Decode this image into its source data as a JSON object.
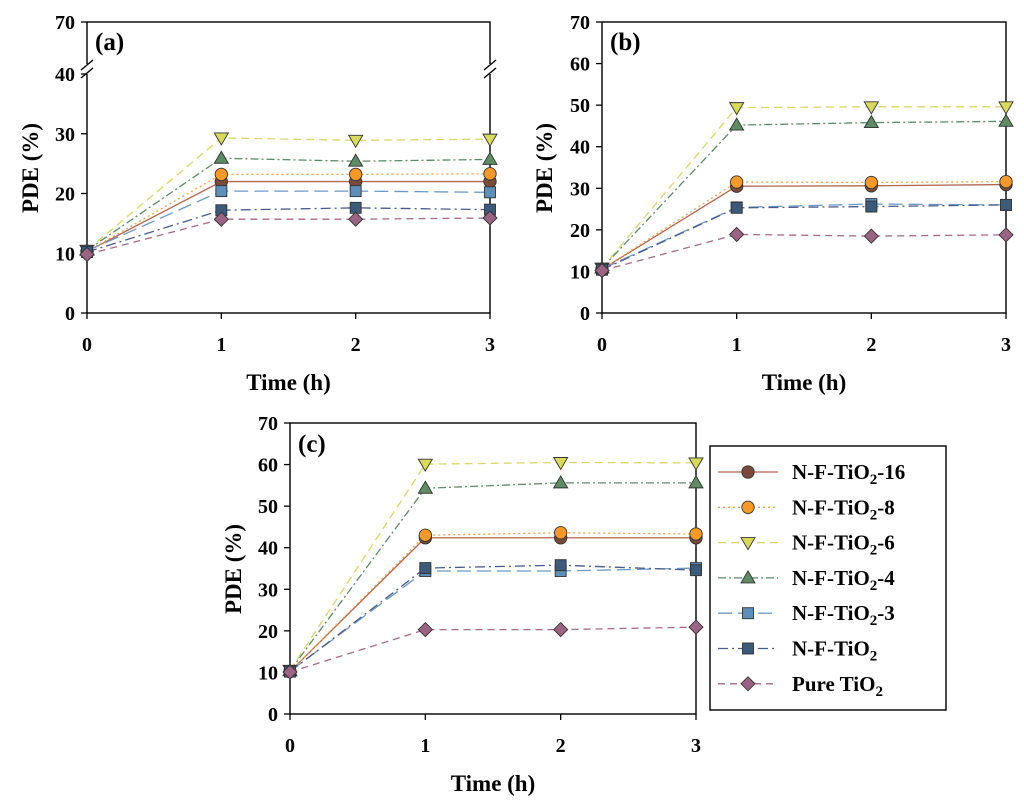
{
  "figure": {
    "legend": {
      "entries": [
        {
          "label": "N-F-TiO2-16",
          "html": "N-F-TiO<tspan font-size=\"15\" dy=\"5\">2</tspan><tspan dy=\"-5\">-16</tspan>",
          "series_ref": 0
        },
        {
          "label": "N-F-TiO2-8",
          "html": "N-F-TiO<tspan font-size=\"15\" dy=\"5\">2</tspan><tspan dy=\"-5\">-8</tspan>",
          "series_ref": 1
        },
        {
          "label": "N-F-TiO2-6",
          "html": "N-F-TiO<tspan font-size=\"15\" dy=\"5\">2</tspan><tspan dy=\"-5\">-6</tspan>",
          "series_ref": 2
        },
        {
          "label": "N-F-TiO2-4",
          "html": "N-F-TiO<tspan font-size=\"15\" dy=\"5\">2</tspan><tspan dy=\"-5\">-4</tspan>",
          "series_ref": 3
        },
        {
          "label": "N-F-TiO2-3",
          "html": "N-F-TiO<tspan font-size=\"15\" dy=\"5\">2</tspan><tspan dy=\"-5\">-3</tspan>",
          "series_ref": 4
        },
        {
          "label": "N-F-TiO2",
          "html": "N-F-TiO<tspan font-size=\"15\" dy=\"5\">2</tspan>",
          "series_ref": 5
        },
        {
          "label": "Pure TiO2",
          "html": "Pure TiO<tspan font-size=\"15\" dy=\"5\">2</tspan>",
          "series_ref": 6
        }
      ]
    },
    "series_styles": [
      {
        "name": "N-F-TiO2-16",
        "color": "#b5654f",
        "marker": "circle",
        "marker_fill": "#7a4a3a",
        "dash": ""
      },
      {
        "name": "N-F-TiO2-8",
        "color": "#f2a24a",
        "marker": "circle",
        "marker_fill": "#f59a2a",
        "dash": "2,3"
      },
      {
        "name": "N-F-TiO2-6",
        "color": "#d8d86a",
        "marker": "triangle-down",
        "marker_fill": "#d9d95c",
        "dash": "8,5"
      },
      {
        "name": "N-F-TiO2-4",
        "color": "#5c8a6a",
        "marker": "triangle-up",
        "marker_fill": "#5e8c64",
        "dash": "8,3,2,3"
      },
      {
        "name": "N-F-TiO2-3",
        "color": "#6c9ac4",
        "marker": "square",
        "marker_fill": "#5d8fb8",
        "dash": "14,6"
      },
      {
        "name": "N-F-TiO2",
        "color": "#4a5a8c",
        "marker": "square",
        "marker_fill": "#3c5a7a",
        "dash": "10,4,2,4"
      },
      {
        "name": "Pure TiO2",
        "color": "#a86a88",
        "marker": "diamond",
        "marker_fill": "#9c6484",
        "dash": "7,5"
      }
    ]
  },
  "chart_data": [
    {
      "type": "line",
      "panel": "(a)",
      "xlabel": "Time (h)",
      "ylabel": "PDE (%)",
      "x": [
        0,
        1,
        2,
        3
      ],
      "xlim": [
        0,
        3
      ],
      "xticks": [
        0,
        1,
        2,
        3
      ],
      "ylim": [
        0,
        70
      ],
      "axis_break": {
        "from": 35,
        "to": 60
      },
      "yticks": [
        0,
        10,
        20,
        30,
        40,
        70
      ],
      "series": [
        {
          "name": "N-F-TiO2-16",
          "values": [
            10.3,
            22.0,
            22.0,
            22.0
          ]
        },
        {
          "name": "N-F-TiO2-8",
          "values": [
            10.3,
            23.2,
            23.2,
            23.3
          ]
        },
        {
          "name": "N-F-TiO2-6",
          "values": [
            10.5,
            29.3,
            28.9,
            29.1
          ]
        },
        {
          "name": "N-F-TiO2-4",
          "values": [
            10.5,
            25.9,
            25.4,
            25.7
          ]
        },
        {
          "name": "N-F-TiO2-3",
          "values": [
            10.4,
            20.4,
            20.4,
            20.2
          ]
        },
        {
          "name": "N-F-TiO2",
          "values": [
            10.2,
            17.2,
            17.6,
            17.3
          ]
        },
        {
          "name": "Pure TiO2",
          "values": [
            9.8,
            15.7,
            15.7,
            15.9
          ]
        }
      ]
    },
    {
      "type": "line",
      "panel": "(b)",
      "xlabel": "Time (h)",
      "ylabel": "PDE (%)",
      "x": [
        0,
        1,
        2,
        3
      ],
      "xlim": [
        0,
        3
      ],
      "xticks": [
        0,
        1,
        2,
        3
      ],
      "ylim": [
        0,
        70
      ],
      "yticks": [
        0,
        10,
        20,
        30,
        40,
        50,
        60,
        70
      ],
      "series": [
        {
          "name": "N-F-TiO2-16",
          "values": [
            10.5,
            30.5,
            30.6,
            30.9
          ]
        },
        {
          "name": "N-F-TiO2-8",
          "values": [
            10.5,
            31.5,
            31.4,
            31.6
          ]
        },
        {
          "name": "N-F-TiO2-6",
          "values": [
            10.8,
            49.4,
            49.6,
            49.6
          ]
        },
        {
          "name": "N-F-TiO2-4",
          "values": [
            10.8,
            45.2,
            45.8,
            46.1
          ]
        },
        {
          "name": "N-F-TiO2-3",
          "values": [
            10.6,
            25.4,
            26.2,
            26.0
          ]
        },
        {
          "name": "N-F-TiO2",
          "values": [
            10.4,
            25.3,
            25.6,
            26.0
          ]
        },
        {
          "name": "Pure TiO2",
          "values": [
            10.2,
            18.9,
            18.5,
            18.8
          ]
        }
      ]
    },
    {
      "type": "line",
      "panel": "(c)",
      "xlabel": "Time (h)",
      "ylabel": "PDE (%)",
      "x": [
        0,
        1,
        2,
        3
      ],
      "xlim": [
        0,
        3
      ],
      "xticks": [
        0,
        1,
        2,
        3
      ],
      "ylim": [
        0,
        70
      ],
      "yticks": [
        0,
        10,
        20,
        30,
        40,
        50,
        60,
        70
      ],
      "series": [
        {
          "name": "N-F-TiO2-16",
          "values": [
            10.2,
            42.4,
            42.4,
            42.4
          ]
        },
        {
          "name": "N-F-TiO2-8",
          "values": [
            10.2,
            43.0,
            43.6,
            43.3
          ]
        },
        {
          "name": "N-F-TiO2-6",
          "values": [
            10.5,
            60.1,
            60.5,
            60.4
          ]
        },
        {
          "name": "N-F-TiO2-4",
          "values": [
            10.4,
            54.3,
            55.6,
            55.6
          ]
        },
        {
          "name": "N-F-TiO2-3",
          "values": [
            10.3,
            34.4,
            34.4,
            35.1
          ]
        },
        {
          "name": "N-F-TiO2",
          "values": [
            10.2,
            35.1,
            35.8,
            34.6
          ]
        },
        {
          "name": "Pure TiO2",
          "values": [
            10.1,
            20.3,
            20.3,
            20.9
          ]
        }
      ]
    }
  ]
}
